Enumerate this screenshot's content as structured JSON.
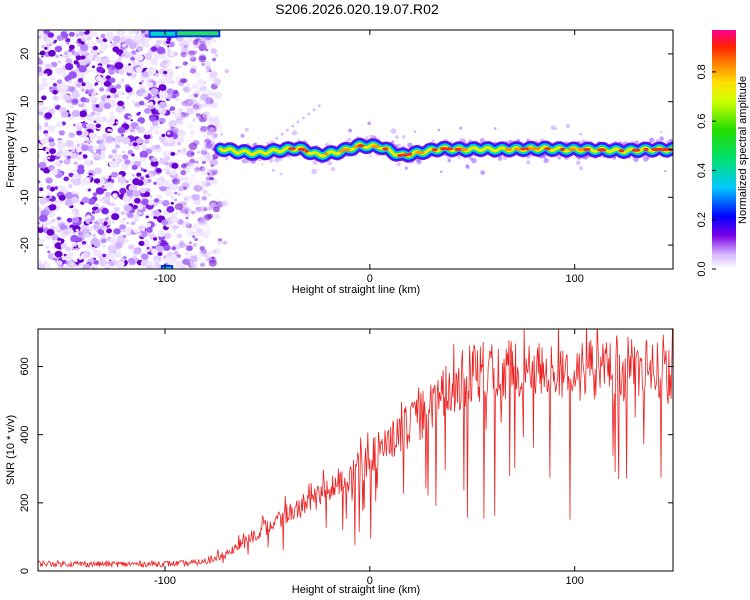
{
  "title": "S206.2026.020.19.07.R02",
  "chart_data": [
    {
      "type": "heatmap",
      "xlabel": "Height of straight line (km)",
      "ylabel": "Frequency (Hz)",
      "xlim": [
        -162,
        148
      ],
      "ylim": [
        -25,
        25
      ],
      "x_ticks": [
        -100,
        0,
        100
      ],
      "y_ticks": [
        -20,
        -10,
        0,
        10,
        20
      ],
      "colorbar": {
        "label": "Normalized spectral amplitude",
        "range": [
          0,
          0.97
        ],
        "ticks": [
          0.0,
          0.2,
          0.4,
          0.6,
          0.8
        ]
      },
      "ridge": {
        "x": [
          -73,
          -65,
          -55,
          -45,
          -35,
          -25,
          -15,
          -5,
          5,
          15,
          25,
          35,
          45,
          55,
          65,
          75,
          85,
          95,
          105,
          115,
          125,
          135,
          148
        ],
        "frequency": [
          0.2,
          -0.4,
          -0.8,
          -0.2,
          0.3,
          -1.2,
          -0.5,
          0.8,
          0.6,
          -1.3,
          -0.6,
          0.2,
          0.0,
          0.1,
          0.0,
          0.1,
          0.2,
          0.0,
          0.0,
          -0.1,
          -0.3,
          0.0,
          0.0
        ]
      },
      "noise_region_x": [
        -162,
        -75
      ]
    },
    {
      "type": "line",
      "xlabel": "Height of straight line (km)",
      "ylabel": "SNR (10 * v/v)",
      "xlim": [
        -162,
        148
      ],
      "ylim": [
        0,
        710
      ],
      "x_ticks": [
        -100,
        0,
        100
      ],
      "y_ticks": [
        0,
        200,
        400,
        600
      ],
      "series": [
        {
          "color": "#ee2222",
          "envelope": {
            "x": [
              -162,
              -120,
              -90,
              -80,
              -70,
              -60,
              -50,
              -40,
              -30,
              -20,
              -10,
              0,
              10,
              20,
              30,
              40,
              50,
              60,
              80,
              100,
              120,
              140,
              148
            ],
            "snr": [
              22,
              20,
              22,
              28,
              50,
              90,
              130,
              170,
              200,
              240,
              280,
              330,
              380,
              430,
              480,
              540,
              580,
              590,
              590,
              580,
              600,
              590,
              600
            ]
          }
        }
      ]
    }
  ]
}
